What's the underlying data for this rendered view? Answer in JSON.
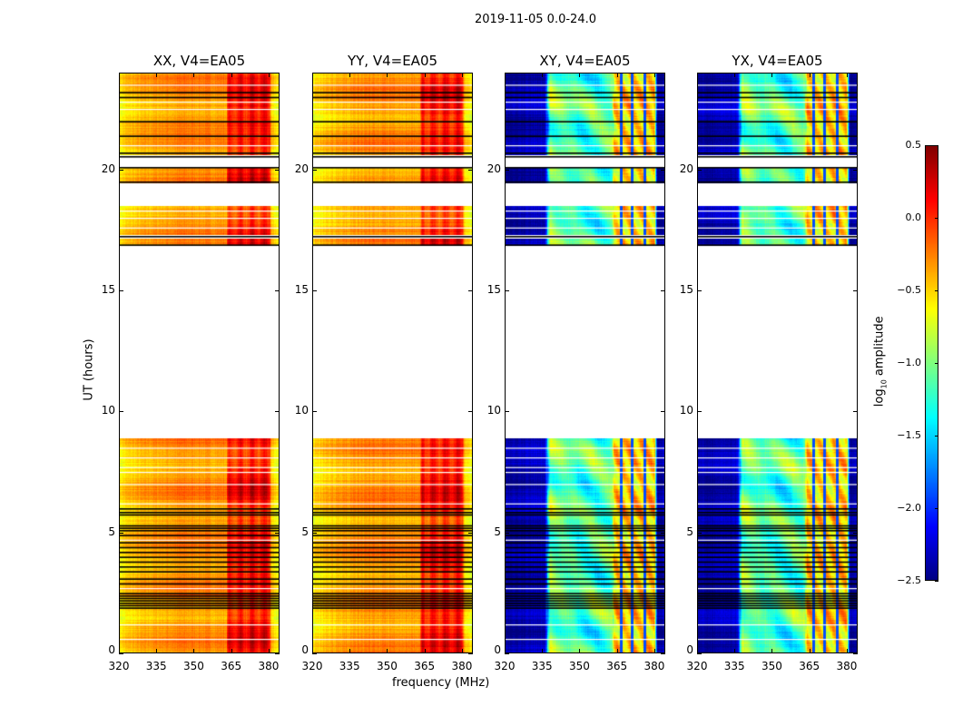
{
  "chart_data": {
    "type": "heatmap",
    "title": "2019-11-05 0.0-24.0",
    "xlabel": "frequency (MHz)",
    "ylabel": "UT (hours)",
    "xlim": [
      320,
      384.4
    ],
    "ylim": [
      0,
      24
    ],
    "xticks": [
      320,
      335,
      350,
      365,
      380
    ],
    "yticks": [
      0,
      5,
      10,
      15,
      20
    ],
    "colorbar": {
      "label": "log10 amplitude",
      "label_main": "log",
      "label_sub": "10",
      "label_rest": " amplitude",
      "range": [
        -2.5,
        0.5
      ],
      "ticks": [
        "0.5",
        "0.0",
        "−0.5",
        "−1.0",
        "−1.5",
        "−2.0",
        "−2.5"
      ],
      "tick_values": [
        0.5,
        0,
        -0.5,
        -1,
        -1.5,
        -2,
        -2.5
      ],
      "colormap": "jet"
    },
    "panels": [
      {
        "title": "XX, V4=EA05",
        "kind": "parallel"
      },
      {
        "title": "YY, V4=EA05",
        "kind": "parallel"
      },
      {
        "title": "XY, V4=EA05",
        "kind": "cross"
      },
      {
        "title": "YX, V4=EA05",
        "kind": "cross"
      }
    ],
    "valid_time_ranges_hours": [
      [
        0,
        8.92
      ],
      [
        16.87,
        17.15
      ],
      [
        17.3,
        18.5
      ],
      [
        19.46,
        20.13
      ],
      [
        20.6,
        24
      ]
    ],
    "flagged_black_lines_hours": [
      1.9,
      2.0,
      2.1,
      2.2,
      2.3,
      2.4,
      2.5,
      2.9,
      3.1,
      3.4,
      3.6,
      3.8,
      4.0,
      4.2,
      4.4,
      4.6,
      4.9,
      5.1,
      5.2,
      5.3,
      5.75,
      5.85,
      6.0,
      16.9,
      17.25,
      19.5,
      20.1,
      20.55,
      20.7,
      21.4,
      22.0,
      23.0,
      23.2
    ],
    "white_gap_lines_hours": [
      0.6,
      1.2,
      2.7,
      4.7,
      6.2,
      7.0,
      7.5,
      7.7,
      8.1,
      8.5,
      17.6,
      18.0,
      18.3,
      21.0,
      22.5,
      22.8,
      23.5
    ],
    "spectral_profile_log10": {
      "parallel": {
        "freq": [
          320,
          323,
          328,
          335,
          345,
          355,
          363,
          364,
          380,
          381,
          384.4
        ],
        "value": [
          -0.6,
          -0.5,
          -0.42,
          -0.35,
          -0.28,
          -0.3,
          -0.3,
          0.05,
          0.1,
          -0.5,
          -0.65
        ]
      },
      "cross": {
        "freq": [
          320,
          336,
          338,
          350,
          362,
          363,
          364,
          380,
          381,
          384.4
        ],
        "value": [
          -2.4,
          -2.3,
          -1.0,
          -1.2,
          -1.1,
          -1.0,
          -0.5,
          -0.45,
          -2.4,
          -2.4
        ]
      },
      "cross_notch_freqs_mhz": [
        366.5,
        371,
        376
      ]
    }
  }
}
